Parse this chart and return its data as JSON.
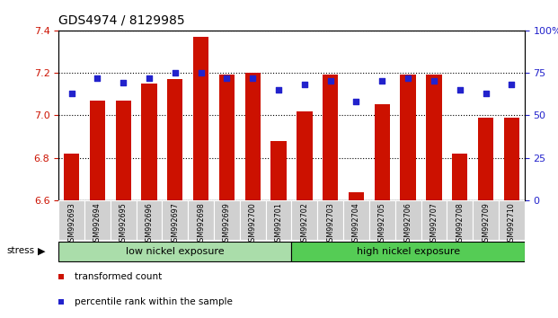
{
  "title": "GDS4974 / 8129985",
  "samples": [
    "GSM992693",
    "GSM992694",
    "GSM992695",
    "GSM992696",
    "GSM992697",
    "GSM992698",
    "GSM992699",
    "GSM992700",
    "GSM992701",
    "GSM992702",
    "GSM992703",
    "GSM992704",
    "GSM992705",
    "GSM992706",
    "GSM992707",
    "GSM992708",
    "GSM992709",
    "GSM992710"
  ],
  "transformed_count": [
    6.82,
    7.07,
    7.07,
    7.15,
    7.17,
    7.37,
    7.19,
    7.2,
    6.88,
    7.02,
    7.19,
    6.64,
    7.05,
    7.19,
    7.19,
    6.82,
    6.99,
    6.99
  ],
  "percentile_rank": [
    63,
    72,
    69,
    72,
    75,
    75,
    72,
    72,
    65,
    68,
    70,
    58,
    70,
    72,
    70,
    65,
    63,
    68
  ],
  "ylim_left": [
    6.6,
    7.4
  ],
  "ylim_right": [
    0,
    100
  ],
  "yticks_left": [
    6.6,
    6.8,
    7.0,
    7.2,
    7.4
  ],
  "yticks_right": [
    0,
    25,
    50,
    75,
    100
  ],
  "bar_color": "#cc1100",
  "dot_color": "#2222cc",
  "bar_baseline": 6.6,
  "group_labels": [
    "low nickel exposure",
    "high nickel exposure"
  ],
  "group_ranges": [
    [
      0,
      9
    ],
    [
      9,
      18
    ]
  ],
  "group_colors": [
    "#aaddaa",
    "#55cc55"
  ],
  "stress_label": "stress",
  "legend_bar_label": "transformed count",
  "legend_dot_label": "percentile rank within the sample",
  "bar_label_color": "#cc1100",
  "dot_label_color": "#2222cc",
  "title_color": "#000000"
}
